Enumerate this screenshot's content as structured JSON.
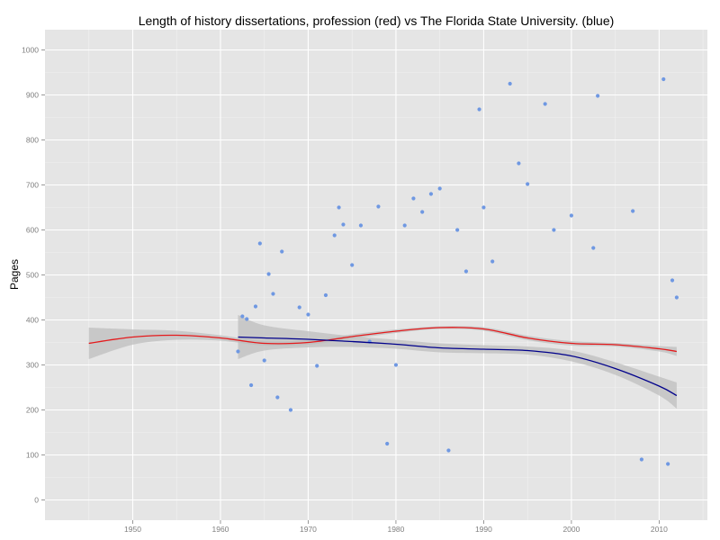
{
  "chart_data": {
    "type": "scatter",
    "title": "Length of history dissertations, profession (red) vs The Florida State University. (blue)",
    "xlabel": "",
    "ylabel": "Pages",
    "xlim": [
      1940,
      2015.5
    ],
    "ylim": [
      -45,
      1045
    ],
    "x_ticks": [
      1950,
      1960,
      1970,
      1980,
      1990,
      2000,
      2010
    ],
    "y_ticks": [
      0,
      100,
      200,
      300,
      400,
      500,
      600,
      700,
      800,
      900,
      1000
    ],
    "grid": true,
    "colors": {
      "panel": "#e5e5e5",
      "grid_major": "#ffffff",
      "points": "#6f98e2",
      "profession_line": "#e41a1c",
      "fsu_line": "#00008b",
      "confidence_band": "#bdbdbd"
    },
    "series": [
      {
        "type": "smooth",
        "color": "#e41a1c",
        "x": [
          1945,
          1950,
          1955,
          1960,
          1965,
          1970,
          1975,
          1980,
          1985,
          1990,
          1995,
          2000,
          2005,
          2010,
          2012
        ],
        "y": [
          348,
          362,
          366,
          360,
          348,
          350,
          363,
          375,
          383,
          380,
          360,
          348,
          345,
          336,
          330
        ],
        "band_lower": [
          313,
          345,
          356,
          354,
          343,
          345,
          358,
          371,
          380,
          376,
          355,
          343,
          341,
          330,
          320
        ],
        "band_upper": [
          383,
          379,
          376,
          366,
          353,
          355,
          368,
          379,
          386,
          384,
          365,
          353,
          349,
          342,
          340
        ]
      },
      {
        "type": "smooth",
        "color": "#00008b",
        "x": [
          1962,
          1965,
          1970,
          1975,
          1980,
          1985,
          1990,
          1995,
          2000,
          2005,
          2010,
          2012
        ],
        "y": [
          362,
          360,
          357,
          352,
          346,
          338,
          335,
          332,
          320,
          292,
          253,
          232
        ],
        "band_lower": [
          313,
          332,
          339,
          340,
          336,
          328,
          326,
          323,
          308,
          278,
          232,
          203
        ],
        "band_upper": [
          411,
          388,
          375,
          364,
          356,
          348,
          344,
          341,
          332,
          306,
          274,
          261
        ]
      },
      {
        "type": "points",
        "color": "#6f98e2",
        "x": [
          1962,
          1962.5,
          1963,
          1963.5,
          1964,
          1964.5,
          1965,
          1965.5,
          1966,
          1966.5,
          1967,
          1968,
          1969,
          1970,
          1971,
          1972,
          1973,
          1973.5,
          1974,
          1975,
          1976,
          1977,
          1978,
          1979,
          1980,
          1981,
          1982,
          1983,
          1984,
          1985,
          1986,
          1987,
          1988,
          1989.5,
          1990,
          1991,
          1993,
          1994,
          1995,
          1997,
          1998,
          2000,
          2002.5,
          2003,
          2007,
          2008,
          2010.5,
          2011,
          2011.5,
          2012
        ],
        "y": [
          330,
          408,
          402,
          255,
          430,
          570,
          310,
          502,
          458,
          228,
          552,
          200,
          428,
          412,
          298,
          455,
          588,
          650,
          612,
          522,
          610,
          352,
          652,
          125,
          300,
          610,
          670,
          640,
          680,
          692,
          110,
          600,
          508,
          868,
          650,
          530,
          925,
          748,
          702,
          880,
          600,
          632,
          560,
          898,
          642,
          90,
          935,
          80,
          488,
          450
        ]
      }
    ]
  }
}
